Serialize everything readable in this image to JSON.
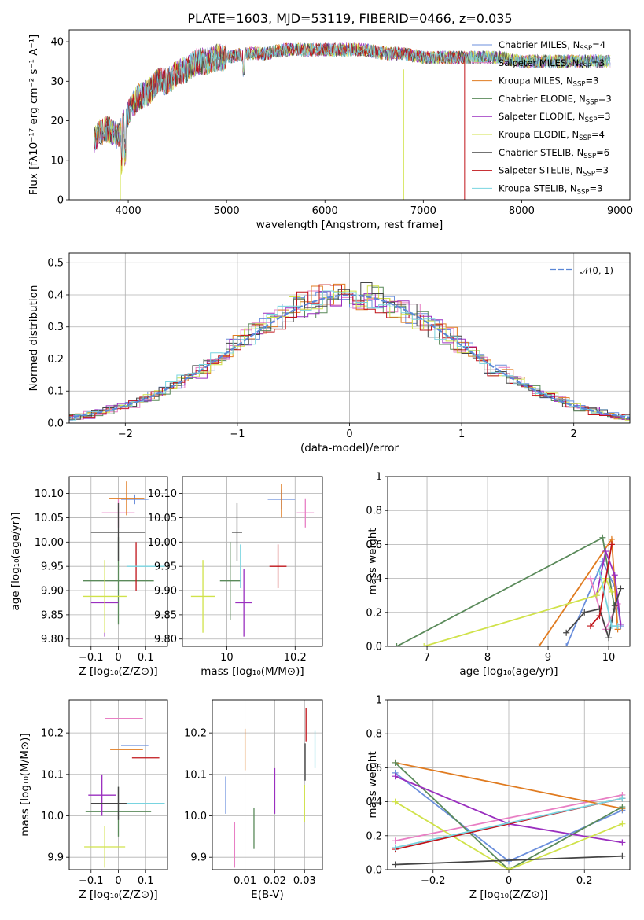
{
  "figure": {
    "title": "PLATE=1603, MJD=53119, FIBERID=0466, z=0.035"
  },
  "models": [
    {
      "label": "Chabrier MILES, N",
      "sub": "SSP",
      "suffix": "=4",
      "color": "#6b8fdc"
    },
    {
      "label": "Salpeter MILES, N",
      "sub": "SSP",
      "suffix": "=3",
      "color": "#e87fc4"
    },
    {
      "label": "Kroupa MILES, N",
      "sub": "SSP",
      "suffix": "=3",
      "color": "#e07b20"
    },
    {
      "label": "Chabrier ELODIE, N",
      "sub": "SSP",
      "suffix": "=3",
      "color": "#5a8a5a"
    },
    {
      "label": "Salpeter ELODIE, N",
      "sub": "SSP",
      "suffix": "=3",
      "color": "#9a2fbf"
    },
    {
      "label": "Kroupa ELODIE, N",
      "sub": "SSP",
      "suffix": "=4",
      "color": "#d0e24a"
    },
    {
      "label": "Chabrier STELIB, N",
      "sub": "SSP",
      "suffix": "=6",
      "color": "#454545"
    },
    {
      "label": "Salpeter STELIB, N",
      "sub": "SSP",
      "suffix": "=3",
      "color": "#c0141a"
    },
    {
      "label": "Kroupa STELIB, N",
      "sub": "SSP",
      "suffix": "=3",
      "color": "#78d4e0"
    }
  ],
  "chart_data": [
    {
      "id": "spectrum",
      "type": "line",
      "xlabel": "wavelength [Angstrom, rest frame]",
      "ylabel": "Flux [fλ10⁻¹⁷ erg cm⁻² s⁻¹ A⁻¹]",
      "xlim": [
        3400,
        9100
      ],
      "ylim": [
        0,
        43
      ],
      "xticks": [
        4000,
        5000,
        6000,
        7000,
        8000,
        9000
      ],
      "yticks": [
        0,
        10,
        20,
        30,
        40
      ],
      "x": [
        3650,
        3700,
        3800,
        3900,
        4000,
        4100,
        4200,
        4300,
        4400,
        4500,
        4600,
        4700,
        4800,
        4900,
        5000,
        5200,
        5400,
        5600,
        5800,
        6000,
        6200,
        6400,
        6600,
        6800,
        7000,
        7200,
        7400,
        7600,
        7800,
        8000,
        8200,
        8400,
        8600,
        8800
      ],
      "y": [
        15,
        17,
        18,
        16,
        22,
        26,
        27,
        30,
        30,
        32,
        33,
        35,
        35,
        36,
        36,
        37,
        37,
        38,
        38,
        38,
        38,
        38,
        37,
        37,
        36,
        36,
        36,
        36,
        36,
        35,
        35,
        35,
        35,
        35
      ]
    },
    {
      "id": "residuals",
      "type": "line",
      "xlabel": "(data-model)/error",
      "ylabel": "Normed distribution",
      "legend": "𝒩(0, 1)",
      "xlim": [
        -2.5,
        2.5
      ],
      "ylim": [
        0,
        0.53
      ],
      "xticks": [
        -2,
        -1,
        0,
        1,
        2
      ],
      "yticks": [
        0.0,
        0.1,
        0.2,
        0.3,
        0.4,
        0.5
      ]
    },
    {
      "id": "age_vs_Z",
      "type": "scatter",
      "xlabel": "Z [log₁₀(Z/Z⊙)]",
      "ylabel": "age  [log₁₀(age/yr)]",
      "xlim": [
        -0.18,
        0.18
      ],
      "ylim": [
        9.785,
        10.135
      ],
      "xticks": [
        -0.1,
        0.0,
        0.1
      ],
      "yticks": [
        9.8,
        9.85,
        9.9,
        9.95,
        10.0,
        10.05,
        10.1
      ],
      "points": [
        {
          "x": 0.06,
          "y": 10.088,
          "dx": 0.05,
          "dy": 0.01
        },
        {
          "x": 0.0,
          "y": 10.06,
          "dx": 0.06,
          "dy": 0.03
        },
        {
          "x": 0.03,
          "y": 10.09,
          "dx": 0.065,
          "dy": 0.035
        },
        {
          "x": 0.0,
          "y": 9.92,
          "dx": 0.13,
          "dy": 0.09
        },
        {
          "x": -0.05,
          "y": 9.875,
          "dx": 0.05,
          "dy": 0.07
        },
        {
          "x": -0.05,
          "y": 9.888,
          "dx": 0.08,
          "dy": 0.075
        },
        {
          "x": 0.0,
          "y": 10.02,
          "dx": 0.1,
          "dy": 0.06
        },
        {
          "x": 0.065,
          "y": 9.95,
          "dx": 0.0,
          "dy": 0.05
        },
        {
          "x": 0.1,
          "y": 9.95,
          "dx": 0.07,
          "dy": 0.0
        },
        {
          "x": 0.1,
          "y": 9.95,
          "dx": 0.0,
          "dy": 0.0
        }
      ]
    },
    {
      "id": "age_vs_mass",
      "type": "scatter",
      "xlabel": "mass [log₁₀(M/M⊙)]",
      "xlim": [
        9.87,
        10.28
      ],
      "ylim": [
        9.785,
        10.135
      ],
      "xticks": [
        10.0,
        10.2
      ],
      "yticks": [
        9.8,
        9.85,
        9.9,
        9.95,
        10.0,
        10.05,
        10.1
      ],
      "points": [
        {
          "x": 10.16,
          "y": 10.088,
          "dx": 0.04,
          "dy": 0.02
        },
        {
          "x": 10.23,
          "y": 10.06,
          "dx": 0.025,
          "dy": 0.03
        },
        {
          "x": 10.16,
          "y": 10.085,
          "dx": 0.0,
          "dy": 0.035
        },
        {
          "x": 10.01,
          "y": 9.92,
          "dx": 0.03,
          "dy": 0.08
        },
        {
          "x": 10.05,
          "y": 9.875,
          "dx": 0.025,
          "dy": 0.07
        },
        {
          "x": 9.93,
          "y": 9.888,
          "dx": 0.035,
          "dy": 0.075
        },
        {
          "x": 10.03,
          "y": 10.02,
          "dx": 0.015,
          "dy": 0.06
        },
        {
          "x": 10.15,
          "y": 9.95,
          "dx": 0.025,
          "dy": 0.045
        },
        {
          "x": 10.04,
          "y": 9.95,
          "dx": 0.0,
          "dy": 0.045
        }
      ]
    },
    {
      "id": "mass_weight_vs_age",
      "type": "line",
      "xlabel": "age  [log₁₀(age/yr)]",
      "ylabel": "mass weight",
      "xlim": [
        6.35,
        10.35
      ],
      "ylim": [
        0,
        1
      ],
      "xticks": [
        7,
        8,
        9,
        10
      ],
      "yticks": [
        0.0,
        0.2,
        0.4,
        0.6,
        0.8,
        1.0
      ]
    },
    {
      "id": "mass_vs_Z",
      "type": "scatter",
      "xlabel": "Z [log₁₀(Z/Z⊙)]",
      "ylabel": "mass [log₁₀(M/M⊙)]",
      "xlim": [
        -0.18,
        0.18
      ],
      "ylim": [
        9.87,
        10.28
      ],
      "xticks": [
        -0.1,
        0.0,
        0.1
      ],
      "yticks": [
        9.9,
        10.0,
        10.1,
        10.2
      ],
      "points": [
        {
          "x": 0.06,
          "y": 10.17,
          "dx": 0.05,
          "dy": 0.0
        },
        {
          "x": 0.02,
          "y": 10.235,
          "dx": 0.07,
          "dy": 0.0
        },
        {
          "x": 0.03,
          "y": 10.16,
          "dx": 0.06,
          "dy": 0.0
        },
        {
          "x": 0.0,
          "y": 10.01,
          "dx": 0.12,
          "dy": 0.06
        },
        {
          "x": -0.06,
          "y": 10.05,
          "dx": 0.05,
          "dy": 0.05
        },
        {
          "x": -0.05,
          "y": 9.925,
          "dx": 0.075,
          "dy": 0.05
        },
        {
          "x": 0.0,
          "y": 10.03,
          "dx": 0.1,
          "dy": 0.04
        },
        {
          "x": 0.1,
          "y": 10.14,
          "dx": 0.05,
          "dy": 0.0
        },
        {
          "x": 0.1,
          "y": 10.03,
          "dx": 0.07,
          "dy": 0.0
        }
      ]
    },
    {
      "id": "mass_vs_EBV",
      "type": "scatter",
      "xlabel": "E(B-V)",
      "xlim": [
        -0.001,
        0.036
      ],
      "ylim": [
        9.87,
        10.28
      ],
      "xticks": [
        0.01,
        0.02,
        0.03
      ],
      "yticks": [
        9.9,
        10.0,
        10.1,
        10.2
      ],
      "points": [
        {
          "x": 0.0035,
          "y": 10.05,
          "dy": 0.045
        },
        {
          "x": 0.0065,
          "y": 9.93,
          "dy": 0.055
        },
        {
          "x": 0.01,
          "y": 10.16,
          "dy": 0.05
        },
        {
          "x": 0.013,
          "y": 9.97,
          "dy": 0.05
        },
        {
          "x": 0.02,
          "y": 10.06,
          "dy": 0.055
        },
        {
          "x": 0.03,
          "y": 10.03,
          "dy": 0.045
        },
        {
          "x": 0.0302,
          "y": 10.13,
          "dy": 0.045
        },
        {
          "x": 0.0305,
          "y": 10.22,
          "dy": 0.04
        },
        {
          "x": 0.0335,
          "y": 10.16,
          "dy": 0.045
        }
      ]
    },
    {
      "id": "mass_weight_vs_Z",
      "type": "line",
      "xlabel": "Z [log₁₀(Z/Z⊙)]",
      "ylabel": "mass weight",
      "xlim": [
        -0.32,
        0.32
      ],
      "ylim": [
        0,
        1
      ],
      "xticks": [
        -0.2,
        0.0,
        0.2
      ],
      "yticks": [
        0.0,
        0.2,
        0.4,
        0.6,
        0.8,
        1.0
      ],
      "series": [
        {
          "name": "Chabrier MILES",
          "x": [
            -0.3,
            0.0,
            0.3
          ],
          "y": [
            0.57,
            0.05,
            0.35
          ]
        },
        {
          "name": "Salpeter MILES",
          "x": [
            -0.3,
            0.3
          ],
          "y": [
            0.17,
            0.44
          ]
        },
        {
          "name": "Kroupa MILES",
          "x": [
            -0.3,
            0.3
          ],
          "y": [
            0.63,
            0.36
          ]
        },
        {
          "name": "Chabrier ELODIE",
          "x": [
            -0.3,
            0.0,
            0.3
          ],
          "y": [
            0.63,
            0.0,
            0.37
          ]
        },
        {
          "name": "Salpeter ELODIE",
          "x": [
            -0.3,
            0.0,
            0.3
          ],
          "y": [
            0.55,
            0.27,
            0.16
          ]
        },
        {
          "name": "Kroupa ELODIE",
          "x": [
            -0.3,
            0.0,
            0.3
          ],
          "y": [
            0.4,
            0.0,
            0.27
          ]
        },
        {
          "name": "Chabrier STELIB",
          "x": [
            -0.3,
            0.3
          ],
          "y": [
            0.03,
            0.08
          ]
        },
        {
          "name": "Salpeter STELIB",
          "x": [
            -0.3,
            0.3
          ],
          "y": [
            0.12,
            0.42
          ]
        },
        {
          "name": "Kroupa STELIB",
          "x": [
            -0.3,
            0.3
          ],
          "y": [
            0.13,
            0.42
          ]
        }
      ]
    }
  ]
}
